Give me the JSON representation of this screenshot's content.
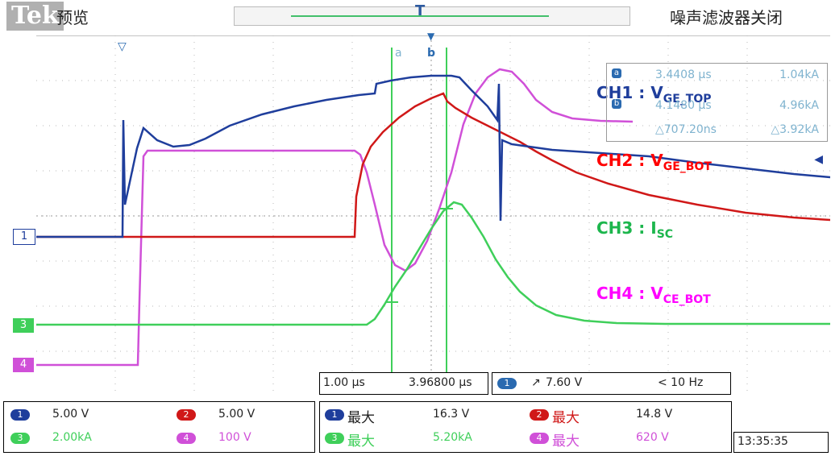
{
  "header": {
    "brand": "Tek",
    "mode": "预览",
    "filter": "噪声滤波器关闭",
    "trigger_marker": "T"
  },
  "cursor_readout": {
    "a_time": "3.4408 µs",
    "a_value": "1.04kA",
    "b_time": "4.1480 µs",
    "b_value": "4.96kA",
    "delta_time": "△707.20ns",
    "delta_value": "△3.92kA",
    "a_tag": "a",
    "b_tag": "b"
  },
  "channel_labels": {
    "ch1": {
      "prefix": "CH1 : V",
      "sub": "GE_TOP",
      "color": "#1f3e9c"
    },
    "ch2": {
      "prefix": "CH2 : V",
      "sub": "GE_BOT",
      "color": "#ff0000"
    },
    "ch3": {
      "prefix": "CH3 : I",
      "sub": "SC",
      "color": "#1db64d"
    },
    "ch4": {
      "prefix": "CH4 : V",
      "sub": "CE_BOT",
      "color": "#ff00ff"
    }
  },
  "markers": {
    "ch1": "1",
    "ch3": "3",
    "ch4": "4"
  },
  "timebase": {
    "scale": "1.00 µs",
    "position": "3.96800 µs",
    "trigger_channel": "1",
    "trigger_level": "7.60 V",
    "trigger_freq": "< 10 Hz"
  },
  "scales": {
    "ch1": {
      "tag": "1",
      "value": "5.00 V"
    },
    "ch2": {
      "tag": "2",
      "value": "5.00 V"
    },
    "ch3": {
      "tag": "3",
      "value": "2.00kA"
    },
    "ch4": {
      "tag": "4",
      "value": "100 V"
    }
  },
  "measurements": {
    "ch1": {
      "tag": "1",
      "label": "最大",
      "value": "16.3 V"
    },
    "ch2": {
      "tag": "2",
      "label": "最大",
      "value": "14.8 V"
    },
    "ch3": {
      "tag": "3",
      "label": "最大",
      "value": "5.20kA"
    },
    "ch4": {
      "tag": "4",
      "label": "最大",
      "value": "620 V"
    }
  },
  "clock": "13:35:35",
  "colors": {
    "ch1": "#1f3e9c",
    "ch2": "#d01818",
    "ch3": "#3fcf5a",
    "ch4": "#d050d8",
    "cursor": "#3fcf5a"
  }
}
